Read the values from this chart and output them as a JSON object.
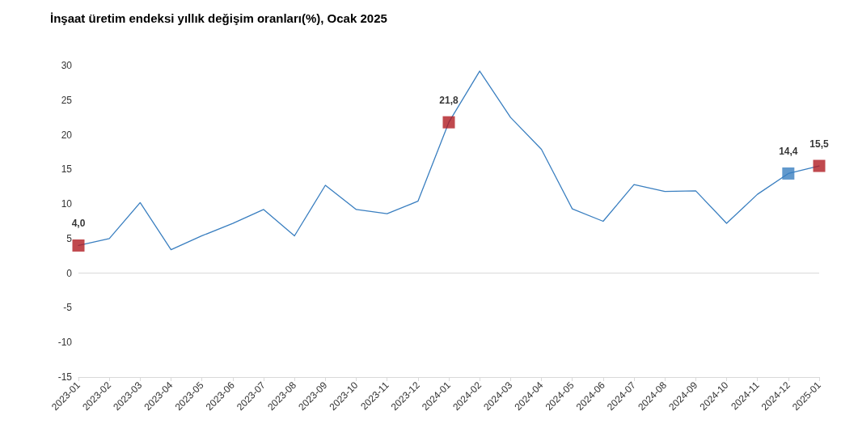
{
  "chart_data": {
    "type": "line",
    "title": "İnşaat üretim endeksi yıllık değişim oranları(%), Ocak 2025",
    "categories": [
      "2023-01",
      "2023-02",
      "2023-03",
      "2023-04",
      "2023-05",
      "2023-06",
      "2023-07",
      "2023-08",
      "2023-09",
      "2023-10",
      "2023-11",
      "2023-12",
      "2024-01",
      "2024-02",
      "2024-03",
      "2024-04",
      "2024-05",
      "2024-06",
      "2024-07",
      "2024-08",
      "2024-09",
      "2024-10",
      "2024-11",
      "2024-12",
      "2025-01"
    ],
    "series": [
      {
        "color": "#3a7fc0",
        "marker": "none",
        "line_style": "solid",
        "values": [
          4.0,
          5.0,
          10.2,
          3.4,
          5.4,
          7.2,
          9.2,
          5.4,
          12.7,
          9.2,
          8.6,
          10.4,
          21.8,
          29.2,
          22.5,
          17.9,
          9.3,
          7.5,
          12.8,
          11.8,
          11.9,
          7.2,
          11.4,
          14.4,
          15.5
        ]
      },
      {
        "type": "scatter",
        "marker": "square",
        "values": [
          4.0,
          null,
          null,
          null,
          null,
          null,
          null,
          null,
          null,
          null,
          null,
          null,
          21.8,
          null,
          null,
          null,
          null,
          null,
          null,
          null,
          null,
          null,
          null,
          14.4,
          15.5
        ],
        "colors": [
          "#b01c22",
          null,
          null,
          null,
          null,
          null,
          null,
          null,
          null,
          null,
          null,
          null,
          "#b01c22",
          null,
          null,
          null,
          null,
          null,
          null,
          null,
          null,
          null,
          null,
          "#3a7fc0",
          "#b01c22"
        ],
        "value_labels": [
          "4,0",
          null,
          null,
          null,
          null,
          null,
          null,
          null,
          null,
          null,
          null,
          null,
          "21,8",
          null,
          null,
          null,
          null,
          null,
          null,
          null,
          null,
          null,
          null,
          "14,4",
          "15,5"
        ]
      }
    ],
    "ylim": [
      -15,
      30
    ],
    "yticks": [
      -15,
      -10,
      -5,
      0,
      5,
      10,
      15,
      20,
      25,
      30
    ],
    "ref_lines": [
      {
        "axis": "y",
        "value": 0,
        "color": "#d9d9d9"
      }
    ],
    "grid": false
  }
}
